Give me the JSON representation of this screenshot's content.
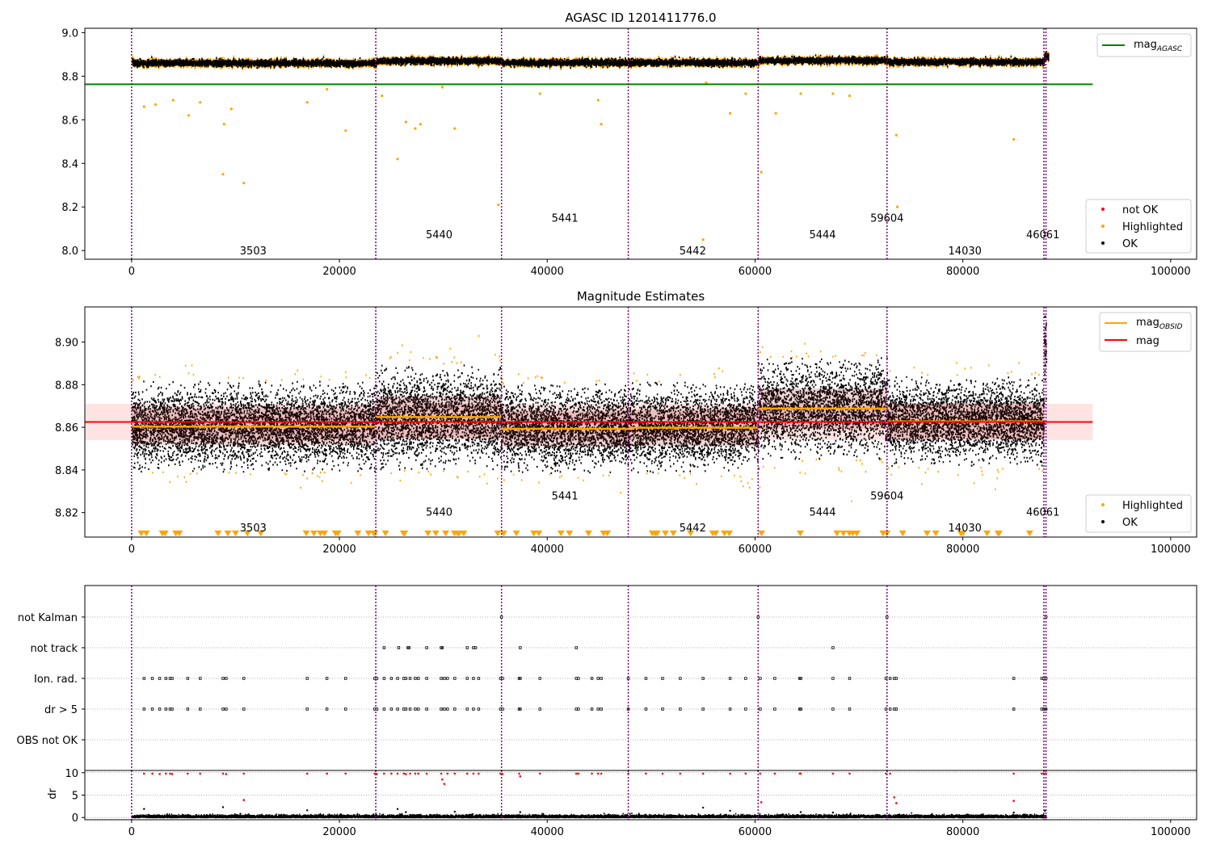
{
  "figure": {
    "title": "AGASC ID 1201411776.0"
  },
  "colors": {
    "ok": "#000000",
    "highlighted": "#ffa500",
    "not_ok": "#ff0000",
    "mag_agasc": "#008000",
    "mag": "#ff0000",
    "mag_obsid": "#ffa500",
    "obsid_boundary": "#800080",
    "band": "#ffc0c0"
  },
  "chart_data": [
    {
      "type": "scatter",
      "title": "AGASC ID 1201411776.0",
      "xlim": [
        -4500,
        102500
      ],
      "ylim": [
        7.96,
        9.02
      ],
      "xticks": [
        0,
        20000,
        40000,
        60000,
        80000,
        100000
      ],
      "xtick_labels": [
        "0",
        "20000",
        "40000",
        "60000",
        "80000",
        "100000"
      ],
      "yticks": [
        8.0,
        8.2,
        8.4,
        8.6,
        8.8,
        9.0
      ],
      "ytick_labels": [
        "8.0",
        "8.2",
        "8.4",
        "8.6",
        "8.8",
        "9.0"
      ],
      "mag_agasc": 8.763,
      "mag_agasc_xrange": [
        -4500,
        92500
      ],
      "obsid_boundaries": [
        0,
        23500,
        35600,
        47800,
        60300,
        72700,
        87800,
        88000
      ],
      "obsid_labels": [
        {
          "text": "3503",
          "x": 11700,
          "y": 8.0
        },
        {
          "text": "5440",
          "x": 29600,
          "y": 8.075
        },
        {
          "text": "5441",
          "x": 41700,
          "y": 8.15
        },
        {
          "text": "5442",
          "x": 54000,
          "y": 8.0
        },
        {
          "text": "5444",
          "x": 66500,
          "y": 8.075
        },
        {
          "text": "59604",
          "x": 72700,
          "y": 8.15
        },
        {
          "text": "14030",
          "x": 80200,
          "y": 8.0
        },
        {
          "text": "46061",
          "x": 87700,
          "y": 8.075
        }
      ],
      "obsid_segments": [
        {
          "x0": 0,
          "x1": 23500,
          "level": 8.86,
          "spread": 0.007
        },
        {
          "x0": 23500,
          "x1": 35600,
          "level": 8.87,
          "spread": 0.007
        },
        {
          "x0": 35600,
          "x1": 47800,
          "level": 8.862,
          "spread": 0.007
        },
        {
          "x0": 47800,
          "x1": 60300,
          "level": 8.862,
          "spread": 0.007
        },
        {
          "x0": 60300,
          "x1": 72700,
          "level": 8.872,
          "spread": 0.007
        },
        {
          "x0": 72700,
          "x1": 87800,
          "level": 8.865,
          "spread": 0.007
        },
        {
          "x0": 87800,
          "x1": 88200,
          "level": 8.89,
          "spread": 0.01
        }
      ],
      "highlighted_outliers": [
        {
          "x": 1200,
          "y": 8.66
        },
        {
          "x": 2300,
          "y": 8.67
        },
        {
          "x": 4000,
          "y": 8.69
        },
        {
          "x": 5500,
          "y": 8.62
        },
        {
          "x": 6600,
          "y": 8.68
        },
        {
          "x": 8900,
          "y": 8.58
        },
        {
          "x": 8800,
          "y": 8.35
        },
        {
          "x": 9600,
          "y": 8.65
        },
        {
          "x": 10800,
          "y": 8.31
        },
        {
          "x": 16900,
          "y": 8.68
        },
        {
          "x": 18800,
          "y": 8.74
        },
        {
          "x": 20600,
          "y": 8.55
        },
        {
          "x": 24100,
          "y": 8.71
        },
        {
          "x": 25600,
          "y": 8.42
        },
        {
          "x": 26400,
          "y": 8.59
        },
        {
          "x": 27300,
          "y": 8.56
        },
        {
          "x": 27800,
          "y": 8.58
        },
        {
          "x": 29900,
          "y": 8.75
        },
        {
          "x": 31100,
          "y": 8.56
        },
        {
          "x": 35300,
          "y": 8.21
        },
        {
          "x": 39300,
          "y": 8.72
        },
        {
          "x": 44900,
          "y": 8.69
        },
        {
          "x": 45200,
          "y": 8.58
        },
        {
          "x": 55300,
          "y": 8.77
        },
        {
          "x": 55000,
          "y": 8.05
        },
        {
          "x": 57600,
          "y": 8.63
        },
        {
          "x": 59100,
          "y": 8.72
        },
        {
          "x": 60600,
          "y": 8.36
        },
        {
          "x": 62000,
          "y": 8.63
        },
        {
          "x": 64400,
          "y": 8.72
        },
        {
          "x": 67500,
          "y": 8.72
        },
        {
          "x": 69100,
          "y": 8.71
        },
        {
          "x": 73600,
          "y": 8.53
        },
        {
          "x": 73700,
          "y": 8.2
        },
        {
          "x": 84900,
          "y": 8.51
        }
      ],
      "legend": {
        "position": "lower-right",
        "entries": [
          "not OK",
          "Highlighted",
          "OK"
        ]
      },
      "line_legend": {
        "position": "upper-right",
        "label": "mag",
        "subscript": "AGASC"
      }
    },
    {
      "type": "scatter",
      "title": "Magnitude Estimates",
      "xlim": [
        -4500,
        102500
      ],
      "ylim": [
        8.8085,
        8.9165
      ],
      "xticks": [
        0,
        20000,
        40000,
        60000,
        80000,
        100000
      ],
      "xtick_labels": [
        "0",
        "20000",
        "40000",
        "60000",
        "80000",
        "100000"
      ],
      "yticks": [
        8.82,
        8.84,
        8.86,
        8.88,
        8.9
      ],
      "ytick_labels": [
        "8.82",
        "8.84",
        "8.86",
        "8.88",
        "8.90"
      ],
      "mag": 8.8625,
      "mag_band": [
        8.854,
        8.871
      ],
      "mag_xrange": [
        -4500,
        92500
      ],
      "obsid_boundaries": [
        0,
        23500,
        35600,
        47800,
        60300,
        72700,
        87800,
        88000
      ],
      "obsid_labels": [
        {
          "text": "3503",
          "x": 11700,
          "y": 8.813
        },
        {
          "text": "5440",
          "x": 29600,
          "y": 8.8205
        },
        {
          "text": "5441",
          "x": 41700,
          "y": 8.828
        },
        {
          "text": "5442",
          "x": 54000,
          "y": 8.813
        },
        {
          "text": "5444",
          "x": 66500,
          "y": 8.8205
        },
        {
          "text": "59604",
          "x": 72700,
          "y": 8.828
        },
        {
          "text": "14030",
          "x": 80200,
          "y": 8.813
        },
        {
          "text": "46061",
          "x": 87700,
          "y": 8.8205
        }
      ],
      "obsid_means": [
        {
          "x0": 0,
          "x1": 23500,
          "mean": 8.8603,
          "std": 0.0085
        },
        {
          "x0": 23500,
          "x1": 35600,
          "mean": 8.8648,
          "std": 0.01
        },
        {
          "x0": 35600,
          "x1": 47800,
          "mean": 8.8593,
          "std": 0.0085
        },
        {
          "x0": 47800,
          "x1": 60300,
          "mean": 8.8598,
          "std": 0.0085
        },
        {
          "x0": 60300,
          "x1": 72700,
          "mean": 8.8688,
          "std": 0.0095
        },
        {
          "x0": 72700,
          "x1": 87800,
          "mean": 8.8628,
          "std": 0.0085
        },
        {
          "x0": 87800,
          "x1": 88000,
          "mean": 8.898,
          "std": 0.01
        }
      ],
      "legend": {
        "position": "lower-right",
        "entries": [
          "Highlighted",
          "OK"
        ]
      },
      "line_legend": {
        "position": "upper-right",
        "entries": [
          {
            "label": "mag",
            "subscript": "OBSID"
          },
          {
            "label": "mag",
            "subscript": ""
          }
        ]
      }
    },
    {
      "type": "scatter",
      "title": "",
      "xlim": [
        -4500,
        102500
      ],
      "categories": [
        "not Kalman",
        "not track",
        "Ion. rad.",
        "dr > 5",
        "OBS not OK"
      ],
      "not_kalman_x": [
        35600,
        60300,
        72700,
        88000
      ],
      "not_track_x": [
        24300,
        25700,
        26600,
        26700,
        28400,
        29800,
        29900,
        32300,
        32900,
        33100,
        37400,
        42800,
        67500
      ],
      "ion_rad_x": [
        1200,
        2000,
        2700,
        3300,
        3700,
        3900,
        5400,
        6600,
        8800,
        9100,
        10800,
        16900,
        18800,
        20600,
        23400,
        23600,
        24300,
        25000,
        25600,
        26200,
        26400,
        26800,
        27300,
        27600,
        28400,
        29800,
        30100,
        30400,
        31100,
        32300,
        32900,
        33400,
        35500,
        35700,
        37300,
        37400,
        39300,
        42800,
        43000,
        44300,
        44900,
        45200,
        47800,
        49500,
        51100,
        52800,
        55000,
        57600,
        59100,
        60500,
        61900,
        64300,
        64400,
        67500,
        69100,
        72600,
        73000,
        73400,
        73600,
        84900,
        87600,
        87800,
        88000
      ],
      "dr_gt5_x": [
        1200,
        2000,
        2700,
        3300,
        3700,
        3900,
        5400,
        6600,
        8800,
        9100,
        10800,
        16900,
        18800,
        20600,
        23400,
        23600,
        24300,
        25000,
        25600,
        26200,
        26400,
        26800,
        27300,
        27600,
        28400,
        29800,
        30100,
        30400,
        31100,
        32300,
        32900,
        33400,
        35500,
        35700,
        37300,
        37400,
        39300,
        42800,
        43000,
        44300,
        44900,
        45200,
        47800,
        49500,
        51100,
        52800,
        55000,
        57600,
        59100,
        60500,
        61900,
        64300,
        64400,
        67500,
        69100,
        72600,
        73000,
        73400,
        73600,
        84900,
        87600,
        87800,
        88000
      ],
      "obsid_boundaries": [
        0,
        23500,
        35600,
        47800,
        60300,
        72700,
        87800,
        88000
      ]
    },
    {
      "type": "scatter",
      "title": "",
      "ylabel": "dr",
      "xlim": [
        -4500,
        102500
      ],
      "ylim": [
        -0.5,
        10.5
      ],
      "xticks": [
        0,
        20000,
        40000,
        60000,
        80000,
        100000
      ],
      "xtick_labels": [
        "0",
        "20000",
        "40000",
        "60000",
        "80000",
        "100000"
      ],
      "yticks": [
        0,
        5,
        10
      ],
      "ytick_labels": [
        "0",
        "5",
        "10"
      ],
      "red_points": [
        {
          "x": 1200,
          "y": 9.8
        },
        {
          "x": 2000,
          "y": 9.8
        },
        {
          "x": 2700,
          "y": 9.7
        },
        {
          "x": 3300,
          "y": 9.8
        },
        {
          "x": 3700,
          "y": 9.8
        },
        {
          "x": 3900,
          "y": 9.7
        },
        {
          "x": 5400,
          "y": 9.8
        },
        {
          "x": 6600,
          "y": 9.8
        },
        {
          "x": 8800,
          "y": 9.8
        },
        {
          "x": 9100,
          "y": 9.7
        },
        {
          "x": 10800,
          "y": 3.9
        },
        {
          "x": 10800,
          "y": 9.8
        },
        {
          "x": 16900,
          "y": 9.8
        },
        {
          "x": 18800,
          "y": 9.8
        },
        {
          "x": 20600,
          "y": 9.8
        },
        {
          "x": 23400,
          "y": 9.8
        },
        {
          "x": 23600,
          "y": 9.7
        },
        {
          "x": 24300,
          "y": 9.8
        },
        {
          "x": 25000,
          "y": 9.8
        },
        {
          "x": 25600,
          "y": 9.8
        },
        {
          "x": 26200,
          "y": 9.8
        },
        {
          "x": 26400,
          "y": 9.7
        },
        {
          "x": 26800,
          "y": 9.8
        },
        {
          "x": 27300,
          "y": 9.8
        },
        {
          "x": 27600,
          "y": 9.8
        },
        {
          "x": 28400,
          "y": 9.8
        },
        {
          "x": 29800,
          "y": 9.8
        },
        {
          "x": 29900,
          "y": 8.5
        },
        {
          "x": 30100,
          "y": 7.5
        },
        {
          "x": 30400,
          "y": 9.8
        },
        {
          "x": 31100,
          "y": 9.8
        },
        {
          "x": 32300,
          "y": 9.8
        },
        {
          "x": 32900,
          "y": 9.8
        },
        {
          "x": 33400,
          "y": 9.8
        },
        {
          "x": 35500,
          "y": 9.8
        },
        {
          "x": 35700,
          "y": 9.7
        },
        {
          "x": 37300,
          "y": 9.8
        },
        {
          "x": 37400,
          "y": 9.2
        },
        {
          "x": 39300,
          "y": 9.8
        },
        {
          "x": 42800,
          "y": 9.8
        },
        {
          "x": 43000,
          "y": 9.8
        },
        {
          "x": 44300,
          "y": 9.8
        },
        {
          "x": 44900,
          "y": 9.8
        },
        {
          "x": 45200,
          "y": 9.8
        },
        {
          "x": 47800,
          "y": 9.8
        },
        {
          "x": 49500,
          "y": 9.8
        },
        {
          "x": 51100,
          "y": 9.8
        },
        {
          "x": 52800,
          "y": 9.8
        },
        {
          "x": 55000,
          "y": 9.8
        },
        {
          "x": 57600,
          "y": 9.8
        },
        {
          "x": 59100,
          "y": 9.8
        },
        {
          "x": 60500,
          "y": 9.8
        },
        {
          "x": 60600,
          "y": 3.4
        },
        {
          "x": 61900,
          "y": 9.8
        },
        {
          "x": 64300,
          "y": 9.8
        },
        {
          "x": 64400,
          "y": 9.8
        },
        {
          "x": 67500,
          "y": 9.8
        },
        {
          "x": 69100,
          "y": 9.8
        },
        {
          "x": 72600,
          "y": 9.8
        },
        {
          "x": 73000,
          "y": 9.8
        },
        {
          "x": 73400,
          "y": 4.5
        },
        {
          "x": 73600,
          "y": 3.2
        },
        {
          "x": 84900,
          "y": 3.7
        },
        {
          "x": 84900,
          "y": 9.8
        },
        {
          "x": 87600,
          "y": 9.8
        },
        {
          "x": 87800,
          "y": 9.8
        },
        {
          "x": 88000,
          "y": 9.8
        }
      ],
      "black_outliers": [
        {
          "x": 1200,
          "y": 1.9
        },
        {
          "x": 8800,
          "y": 2.3
        },
        {
          "x": 16900,
          "y": 1.6
        },
        {
          "x": 25600,
          "y": 1.9
        },
        {
          "x": 26400,
          "y": 1.2
        },
        {
          "x": 31100,
          "y": 1.3
        },
        {
          "x": 37400,
          "y": 1.2
        },
        {
          "x": 55000,
          "y": 2.2
        },
        {
          "x": 57600,
          "y": 1.5
        },
        {
          "x": 64400,
          "y": 1.2
        },
        {
          "x": 67500,
          "y": 1.1
        },
        {
          "x": 84900,
          "y": 1.1
        },
        {
          "x": 87900,
          "y": 1.5
        }
      ],
      "obsid_boundaries": [
        0,
        23500,
        35600,
        47800,
        60300,
        72700,
        87800,
        88000
      ]
    }
  ]
}
